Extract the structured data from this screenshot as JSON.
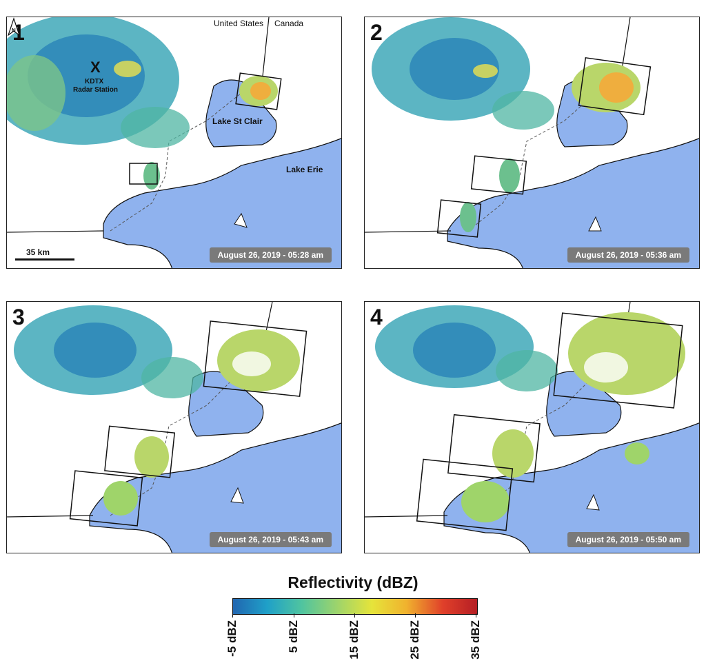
{
  "panels": [
    {
      "number": "1",
      "timestamp": "August 26, 2019 - 05:28 am"
    },
    {
      "number": "2",
      "timestamp": "August 26, 2019 - 05:36 am"
    },
    {
      "number": "3",
      "timestamp": "August 26, 2019 - 05:43 am"
    },
    {
      "number": "4",
      "timestamp": "August 26, 2019 - 05:50 am"
    }
  ],
  "labels": {
    "station_marker": "X",
    "station_name": "KDTX",
    "station_type": "Radar Station",
    "country_us": "United States",
    "country_ca": "Canada",
    "lake_st_clair": "Lake St Clair",
    "lake_erie": "Lake Erie",
    "scale": "35 km",
    "north": "N"
  },
  "colorbar": {
    "title": "Reflectivity (dBZ)",
    "ticks": [
      "-5 dBZ",
      "5 dBZ",
      "15 dBZ",
      "25 dBZ",
      "35 dBZ"
    ],
    "colors": [
      "#2166b0",
      "#1fa0c8",
      "#4fc4a0",
      "#9fd46a",
      "#e6e43a",
      "#f0b22e",
      "#e0402a",
      "#b51e24"
    ]
  }
}
